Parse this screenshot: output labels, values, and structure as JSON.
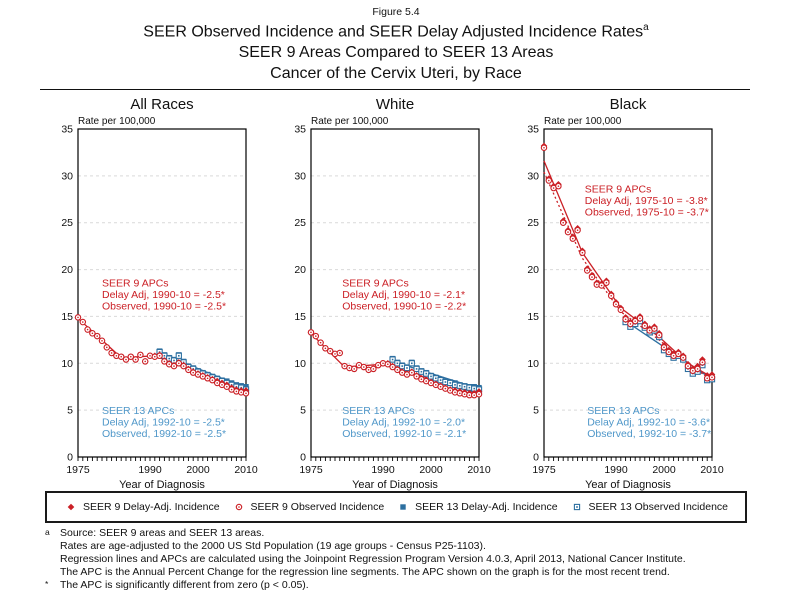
{
  "figure": {
    "number": "Figure 5.4",
    "title_line1": "SEER Observed Incidence and SEER Delay Adjusted Incidence Rates",
    "title_superscript": "a",
    "title_line2": "SEER 9 Areas Compared to SEER 13 Areas",
    "title_line3": "Cancer of the Cervix Uteri, by Race"
  },
  "colors": {
    "seer9": "#CB2026",
    "seer13": "#2C6FA0",
    "seer13_text": "#4F97C9",
    "grid": "#D9D9D9",
    "axis": "#000000"
  },
  "axis": {
    "y_label": "Rate per 100,000",
    "x_label": "Year of Diagnosis",
    "y_ticks": [
      0,
      5,
      10,
      15,
      20,
      25,
      30,
      35
    ],
    "y_gridlines": [
      5,
      10,
      15,
      20,
      25,
      30
    ],
    "x_tick_labels": [
      1975,
      1990,
      2000,
      2010
    ],
    "x_range": [
      1975,
      2010
    ],
    "y_range": [
      0,
      35
    ],
    "minor_tick_every": 1
  },
  "legend": [
    {
      "marker": "diamond-filled",
      "color": "#CB2026",
      "label": "SEER 9 Delay-Adj. Incidence"
    },
    {
      "marker": "circle-open",
      "color": "#CB2026",
      "label": "SEER 9 Observed Incidence"
    },
    {
      "marker": "square-filled",
      "color": "#2C6FA0",
      "label": "SEER 13 Delay-Adj. Incidence"
    },
    {
      "marker": "square-open",
      "color": "#2C6FA0",
      "label": "SEER 13 Observed Incidence"
    }
  ],
  "footnotes": [
    {
      "marker": "a",
      "text": "Source: SEER 9 areas and SEER 13 areas."
    },
    {
      "marker": "",
      "text": "Rates are age-adjusted to the 2000 US Std Population (19 age groups - Census P25-1103)."
    },
    {
      "marker": "",
      "text": "Regression lines and APCs are calculated using the Joinpoint Regression Program Version 4.0.3, April 2013, National Cancer Institute."
    },
    {
      "marker": "",
      "text": "The APC is the Annual Percent Change for the regression line segments. The APC shown on the graph is for the most recent trend."
    },
    {
      "marker": "*",
      "text": "The APC is significantly different from zero (p < 0.05)."
    }
  ],
  "chart_data": [
    {
      "type": "scatter",
      "title": "All Races",
      "ylabel": "Rate per 100,000",
      "xlabel": "Year of Diagnosis",
      "xlim": [
        1975,
        2010
      ],
      "ylim": [
        0,
        35
      ],
      "annotations": [
        {
          "color": "seer9",
          "x": 1980,
          "y": 18.2,
          "lines": [
            "SEER 9 APCs",
            "Delay Adj, 1990-10 = -2.5*",
            "Observed, 1990-10 = -2.5*"
          ]
        },
        {
          "color": "seer13",
          "x": 1980,
          "y": 4.6,
          "lines": [
            "SEER 13 APCs",
            "Delay Adj, 1992-10 = -2.5*",
            "Observed, 1992-10 = -2.5*"
          ]
        }
      ],
      "series": [
        {
          "name": "SEER 13 Delay-Adj. Incidence",
          "marker": "square-filled",
          "x_start": 1992,
          "values": [
            11.3,
            10.9,
            10.6,
            10.4,
            10.9,
            10.2,
            9.7,
            9.5,
            9.2,
            9.0,
            8.8,
            8.6,
            8.4,
            8.2,
            8.1,
            7.9,
            7.7,
            7.6,
            7.5
          ]
        },
        {
          "name": "SEER 13 Observed Incidence",
          "marker": "square-open",
          "x_start": 1992,
          "values": [
            11.2,
            10.8,
            10.5,
            10.3,
            10.8,
            10.1,
            9.6,
            9.4,
            9.1,
            8.9,
            8.7,
            8.5,
            8.3,
            8.1,
            7.9,
            7.7,
            7.5,
            7.4,
            7.2
          ]
        },
        {
          "name": "SEER 9 Delay-Adj. Incidence",
          "marker": "diamond-filled",
          "x_start": 1975,
          "values": [
            14.9,
            14.4,
            13.6,
            13.2,
            12.9,
            12.4,
            11.7,
            11.1,
            10.8,
            10.7,
            10.4,
            10.7,
            10.4,
            10.9,
            10.2,
            10.8,
            10.8,
            10.9,
            10.3,
            10.0,
            9.8,
            10.1,
            9.8,
            9.4,
            9.1,
            8.9,
            8.7,
            8.5,
            8.3,
            8.1,
            7.9,
            7.7,
            7.4,
            7.2,
            7.1,
            7.1
          ]
        },
        {
          "name": "SEER 9 Observed Incidence",
          "marker": "circle-open",
          "x_start": 1975,
          "values": [
            14.9,
            14.4,
            13.6,
            13.2,
            12.9,
            12.4,
            11.7,
            11.1,
            10.8,
            10.7,
            10.4,
            10.7,
            10.4,
            10.9,
            10.2,
            10.8,
            10.7,
            10.8,
            10.2,
            9.9,
            9.7,
            10.0,
            9.7,
            9.3,
            9.0,
            8.8,
            8.6,
            8.4,
            8.2,
            7.9,
            7.7,
            7.5,
            7.2,
            7.0,
            6.9,
            6.8
          ]
        }
      ],
      "trend_lines": [
        {
          "color": "seer13",
          "style": "solid",
          "points": [
            [
              1992,
              11.1
            ],
            [
              2010,
              7.35
            ]
          ]
        },
        {
          "color": "seer9",
          "style": "solid",
          "points": [
            [
              1975,
              14.8
            ],
            [
              1984,
              10.6
            ],
            [
              1991,
              10.8
            ],
            [
              2010,
              6.95
            ]
          ]
        }
      ]
    },
    {
      "type": "scatter",
      "title": "White",
      "ylabel": "Rate per 100,000",
      "xlabel": "Year of Diagnosis",
      "xlim": [
        1975,
        2010
      ],
      "ylim": [
        0,
        35
      ],
      "annotations": [
        {
          "color": "seer9",
          "x": 1981.5,
          "y": 18.2,
          "lines": [
            "SEER 9 APCs",
            "Delay Adj, 1990-10 = -2.1*",
            "Observed, 1990-10 = -2.2*"
          ]
        },
        {
          "color": "seer13",
          "x": 1981.5,
          "y": 4.6,
          "lines": [
            "SEER 13 APCs",
            "Delay Adj, 1992-10 = -2.0*",
            "Observed, 1992-10 = -2.1*"
          ]
        }
      ],
      "series": [
        {
          "name": "SEER 13 Delay-Adj. Incidence",
          "marker": "square-filled",
          "x_start": 1992,
          "values": [
            10.5,
            10.1,
            9.8,
            9.6,
            10.1,
            9.5,
            9.2,
            9.0,
            8.7,
            8.5,
            8.3,
            8.1,
            8.0,
            7.9,
            7.7,
            7.6,
            7.5,
            7.5,
            7.4
          ]
        },
        {
          "name": "SEER 13 Observed Incidence",
          "marker": "square-open",
          "x_start": 1992,
          "values": [
            10.4,
            10.0,
            9.7,
            9.5,
            10.0,
            9.4,
            9.1,
            8.9,
            8.6,
            8.4,
            8.2,
            8.0,
            7.9,
            7.7,
            7.6,
            7.5,
            7.4,
            7.3,
            7.2
          ]
        },
        {
          "name": "SEER 9 Delay-Adj. Incidence",
          "marker": "diamond-filled",
          "x_start": 1975,
          "values": [
            13.3,
            12.9,
            12.2,
            11.6,
            11.3,
            11.0,
            11.1,
            9.7,
            9.5,
            9.4,
            9.8,
            9.6,
            9.3,
            9.4,
            9.8,
            10.0,
            10.0,
            9.7,
            9.4,
            9.1,
            8.9,
            9.1,
            8.7,
            8.4,
            8.2,
            8.0,
            7.8,
            7.6,
            7.4,
            7.2,
            7.1,
            7.0,
            6.9,
            6.8,
            6.8,
            7.0
          ]
        },
        {
          "name": "SEER 9 Observed Incidence",
          "marker": "circle-open",
          "x_start": 1975,
          "values": [
            13.3,
            12.9,
            12.2,
            11.6,
            11.3,
            11.0,
            11.1,
            9.7,
            9.5,
            9.4,
            9.8,
            9.6,
            9.3,
            9.4,
            9.8,
            10.0,
            9.9,
            9.6,
            9.3,
            9.0,
            8.8,
            9.0,
            8.6,
            8.3,
            8.1,
            7.9,
            7.7,
            7.5,
            7.3,
            7.1,
            6.9,
            6.8,
            6.7,
            6.6,
            6.6,
            6.7
          ]
        }
      ],
      "trend_lines": [
        {
          "color": "seer13",
          "style": "solid",
          "points": [
            [
              1992,
              10.2
            ],
            [
              2010,
              7.3
            ]
          ]
        },
        {
          "color": "seer9",
          "style": "solid",
          "points": [
            [
              1975,
              13.2
            ],
            [
              1982,
              9.6
            ],
            [
              1990,
              9.9
            ],
            [
              2010,
              6.75
            ]
          ]
        }
      ]
    },
    {
      "type": "scatter",
      "title": "Black",
      "ylabel": "Rate per 100,000",
      "xlabel": "Year of Diagnosis",
      "xlim": [
        1975,
        2010
      ],
      "ylim": [
        0,
        35
      ],
      "annotations": [
        {
          "color": "seer9",
          "x": 1983.5,
          "y": 28.2,
          "lines": [
            "SEER 9 APCs",
            "Delay Adj, 1975-10 = -3.8*",
            "Observed, 1975-10 = -3.7*"
          ]
        },
        {
          "color": "seer13",
          "x": 1984,
          "y": 4.6,
          "lines": [
            "SEER 13 APCs",
            "Delay Adj, 1992-10 = -3.6*",
            "Observed, 1992-10 = -3.7*"
          ]
        }
      ],
      "series": [
        {
          "name": "SEER 13 Delay-Adj. Incidence",
          "marker": "square-filled",
          "x_start": 1992,
          "values": [
            14.6,
            14.1,
            14.4,
            14.7,
            14.0,
            13.5,
            13.7,
            13.0,
            11.6,
            11.2,
            10.8,
            11.0,
            10.6,
            9.6,
            9.1,
            9.3,
            10.0,
            8.4,
            8.5
          ]
        },
        {
          "name": "SEER 13 Observed Incidence",
          "marker": "square-open",
          "x_start": 1992,
          "values": [
            14.4,
            13.9,
            14.2,
            14.5,
            13.8,
            13.3,
            13.5,
            12.8,
            11.4,
            11.0,
            10.6,
            10.8,
            10.4,
            9.4,
            8.9,
            9.1,
            9.8,
            8.2,
            8.3
          ]
        },
        {
          "name": "SEER 9 Delay-Adj. Incidence",
          "marker": "diamond-filled",
          "x_start": 1975,
          "values": [
            33.2,
            29.7,
            28.9,
            29.1,
            25.2,
            24.2,
            23.5,
            24.4,
            22.0,
            20.1,
            19.4,
            18.6,
            18.5,
            18.8,
            17.4,
            16.5,
            15.9,
            14.9,
            14.4,
            14.7,
            15.0,
            14.2,
            13.7,
            13.9,
            13.2,
            11.9,
            11.4,
            11.0,
            11.2,
            10.8,
            9.9,
            9.4,
            9.7,
            10.4,
            8.7,
            8.8
          ]
        },
        {
          "name": "SEER 9 Observed Incidence",
          "marker": "circle-open",
          "x_start": 1975,
          "values": [
            33.0,
            29.5,
            28.7,
            28.9,
            25.0,
            24.0,
            23.3,
            24.2,
            21.8,
            19.9,
            19.2,
            18.4,
            18.3,
            18.6,
            17.2,
            16.3,
            15.7,
            14.7,
            14.2,
            14.5,
            14.8,
            14.0,
            13.5,
            13.7,
            13.0,
            11.7,
            11.2,
            10.8,
            11.0,
            10.6,
            9.7,
            9.2,
            9.4,
            10.1,
            8.4,
            8.5
          ]
        }
      ],
      "trend_lines": [
        {
          "color": "seer13",
          "style": "solid",
          "points": [
            [
              1992,
              14.5
            ],
            [
              2010,
              8.3
            ]
          ]
        },
        {
          "color": "seer9",
          "style": "dotted",
          "points": [
            [
              1975,
              30.4
            ],
            [
              1983,
              21.2
            ],
            [
              1991,
              15.5
            ],
            [
              1999,
              12.5
            ],
            [
              2005,
              9.8
            ],
            [
              2010,
              8.3
            ]
          ]
        },
        {
          "color": "seer9",
          "style": "solid",
          "points": [
            [
              1975,
              31.6
            ],
            [
              1983,
              21.8
            ],
            [
              1991,
              15.9
            ],
            [
              1999,
              12.8
            ],
            [
              2005,
              10.0
            ],
            [
              2010,
              8.5
            ]
          ]
        }
      ]
    }
  ]
}
